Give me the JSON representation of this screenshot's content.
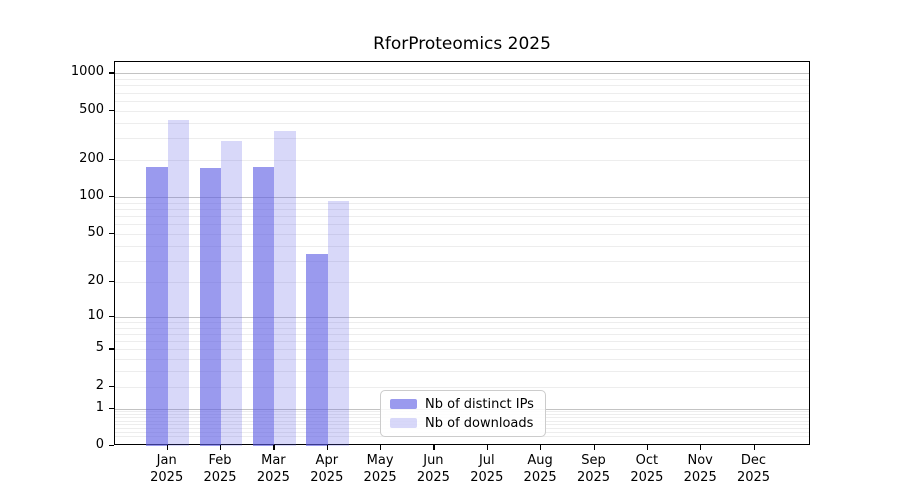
{
  "title": "RforProteomics 2025",
  "colors": {
    "bar_distinct_ips": "rgba(92,92,228,0.62)",
    "bar_downloads": "rgba(92,92,228,0.24)",
    "bar_distinct_ips_hex": "#9a9aee",
    "bar_downloads_hex": "#d8d8f8",
    "grid_major": "#c3c3c3",
    "grid_minor": "#ededed",
    "spine": "#000000"
  },
  "legend": {
    "items": [
      {
        "label": "Nb of distinct IPs",
        "color": "rgba(92,92,228,0.62)"
      },
      {
        "label": "Nb of downloads",
        "color": "rgba(92,92,228,0.24)"
      }
    ]
  },
  "chart_data": {
    "type": "bar",
    "title": "RforProteomics 2025",
    "categories": [
      "Jan",
      "Feb",
      "Mar",
      "Apr",
      "May",
      "Jun",
      "Jul",
      "Aug",
      "Sep",
      "Oct",
      "Nov",
      "Dec"
    ],
    "category_year": "2025",
    "series": [
      {
        "name": "Nb of distinct IPs",
        "values": [
          176,
          172,
          177,
          34,
          0,
          0,
          0,
          0,
          0,
          0,
          0,
          0
        ]
      },
      {
        "name": "Nb of downloads",
        "values": [
          424,
          286,
          345,
          93,
          0,
          0,
          0,
          0,
          0,
          0,
          0,
          0
        ]
      }
    ],
    "xlabel": "",
    "ylabel": "",
    "yticks": [
      0,
      1,
      2,
      5,
      10,
      20,
      50,
      100,
      200,
      500,
      1000
    ],
    "ylim": [
      0,
      1100
    ],
    "yscale": "log1p",
    "grid": true,
    "legend_position": "inside-bottom-center"
  }
}
